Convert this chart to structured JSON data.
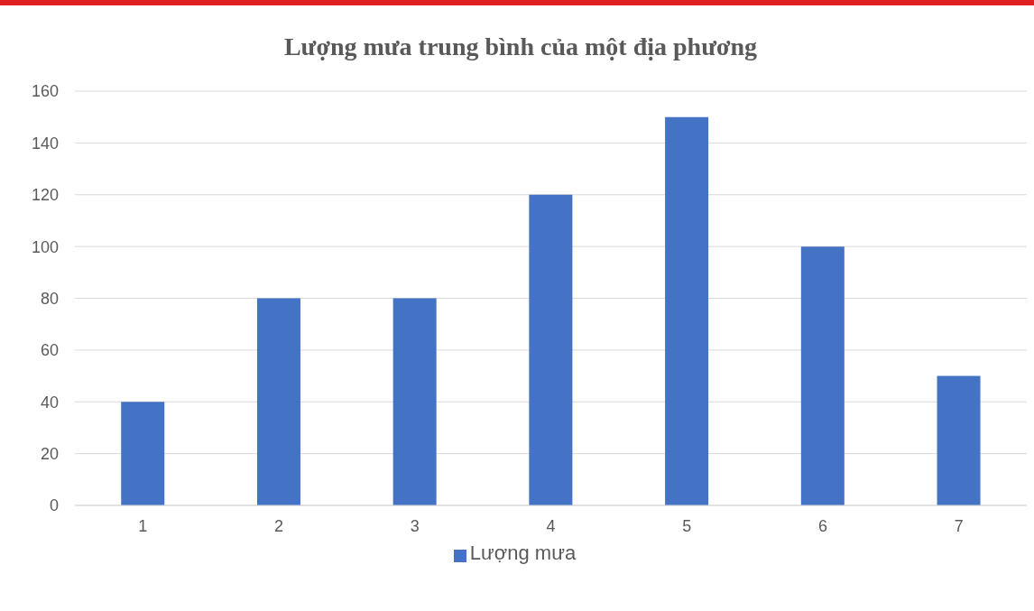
{
  "chart_data": {
    "type": "bar",
    "title": "Lượng mưa trung bình của một địa phương",
    "categories": [
      "1",
      "2",
      "3",
      "4",
      "5",
      "6",
      "7"
    ],
    "series": [
      {
        "name": "Lượng mưa",
        "color": "#4472c4",
        "values": [
          40,
          80,
          80,
          120,
          150,
          100,
          50
        ]
      }
    ],
    "ylim": [
      0,
      160
    ],
    "yticks": [
      0,
      20,
      40,
      60,
      80,
      100,
      120,
      140,
      160
    ],
    "grid": "y",
    "legend": "bottom"
  }
}
